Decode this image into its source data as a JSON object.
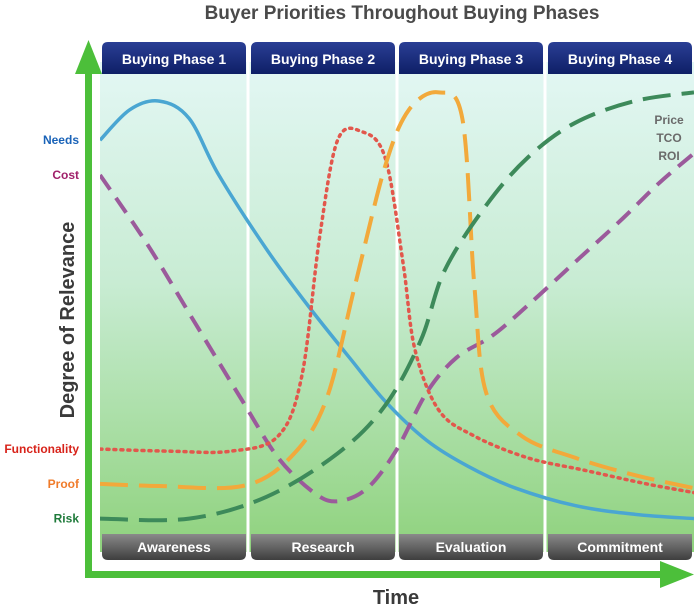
{
  "title": "Buyer Priorities Throughout Buying Phases",
  "y_axis_label": "Degree of Relevance",
  "x_axis_label": "Time",
  "phases": [
    "Buying Phase 1",
    "Buying Phase 2",
    "Buying Phase 3",
    "Buying Phase 4"
  ],
  "stages": [
    "Awareness",
    "Research",
    "Evaluation",
    "Commitment"
  ],
  "annotation": [
    "Price",
    "TCO",
    "ROI"
  ],
  "colors": {
    "phase_header": "#14287a",
    "stage_footer": "#555555",
    "axis_arrow": "#4cbf3a",
    "needs": "#4aa6d2",
    "cost": "#9b5a9b",
    "functionality": "#e2574c",
    "proof": "#f2a93b",
    "risk": "#3d8a5a"
  },
  "series": [
    {
      "key": "needs",
      "label": "Needs",
      "label_color": "#1a63b8",
      "color": "#4aa6d2",
      "style": "solid",
      "points": [
        [
          0,
          88
        ],
        [
          5,
          95
        ],
        [
          10,
          97
        ],
        [
          15,
          93
        ],
        [
          20,
          80
        ],
        [
          28,
          63
        ],
        [
          35,
          50
        ],
        [
          42,
          38
        ],
        [
          48,
          28
        ],
        [
          55,
          19
        ],
        [
          62,
          13
        ],
        [
          70,
          8
        ],
        [
          80,
          4
        ],
        [
          90,
          2
        ],
        [
          100,
          1
        ]
      ]
    },
    {
      "key": "cost",
      "label": "Cost",
      "label_color": "#a0206a",
      "color": "#9b5a9b",
      "style": "dash",
      "points": [
        [
          0,
          80
        ],
        [
          8,
          64
        ],
        [
          16,
          46
        ],
        [
          24,
          28
        ],
        [
          30,
          15
        ],
        [
          36,
          7
        ],
        [
          40,
          5
        ],
        [
          45,
          8
        ],
        [
          50,
          17
        ],
        [
          55,
          30
        ],
        [
          60,
          38
        ],
        [
          66,
          43
        ],
        [
          72,
          50
        ],
        [
          80,
          60
        ],
        [
          88,
          70
        ],
        [
          94,
          78
        ],
        [
          100,
          85
        ]
      ]
    },
    {
      "key": "functionality",
      "label": "Functionality",
      "label_color": "#d8231a",
      "color": "#e2574c",
      "style": "dot",
      "points": [
        [
          0,
          17
        ],
        [
          12,
          16.5
        ],
        [
          22,
          16.5
        ],
        [
          30,
          20
        ],
        [
          34,
          34
        ],
        [
          37,
          66
        ],
        [
          40,
          88
        ],
        [
          44,
          90
        ],
        [
          48,
          84
        ],
        [
          51,
          60
        ],
        [
          53,
          40
        ],
        [
          57,
          26
        ],
        [
          63,
          20
        ],
        [
          72,
          15
        ],
        [
          82,
          12
        ],
        [
          92,
          9
        ],
        [
          100,
          7
        ]
      ]
    },
    {
      "key": "proof",
      "label": "Proof",
      "label_color": "#f07b2a",
      "color": "#f2a93b",
      "style": "longdash",
      "points": [
        [
          0,
          9
        ],
        [
          10,
          8.5
        ],
        [
          24,
          8.5
        ],
        [
          32,
          15
        ],
        [
          38,
          28
        ],
        [
          43,
          55
        ],
        [
          48,
          82
        ],
        [
          52,
          95
        ],
        [
          57,
          99
        ],
        [
          61,
          93
        ],
        [
          63,
          55
        ],
        [
          65,
          30
        ],
        [
          71,
          20
        ],
        [
          80,
          15
        ],
        [
          90,
          11
        ],
        [
          100,
          8
        ]
      ]
    },
    {
      "key": "risk",
      "label": "Risk",
      "label_color": "#1e7a3a",
      "color": "#3d8a5a",
      "style": "longdash",
      "points": [
        [
          0,
          1
        ],
        [
          15,
          1
        ],
        [
          28,
          6
        ],
        [
          40,
          16
        ],
        [
          48,
          27
        ],
        [
          54,
          42
        ],
        [
          58,
          58
        ],
        [
          65,
          73
        ],
        [
          72,
          84
        ],
        [
          80,
          92
        ],
        [
          90,
          97
        ],
        [
          100,
          99
        ]
      ]
    }
  ]
}
